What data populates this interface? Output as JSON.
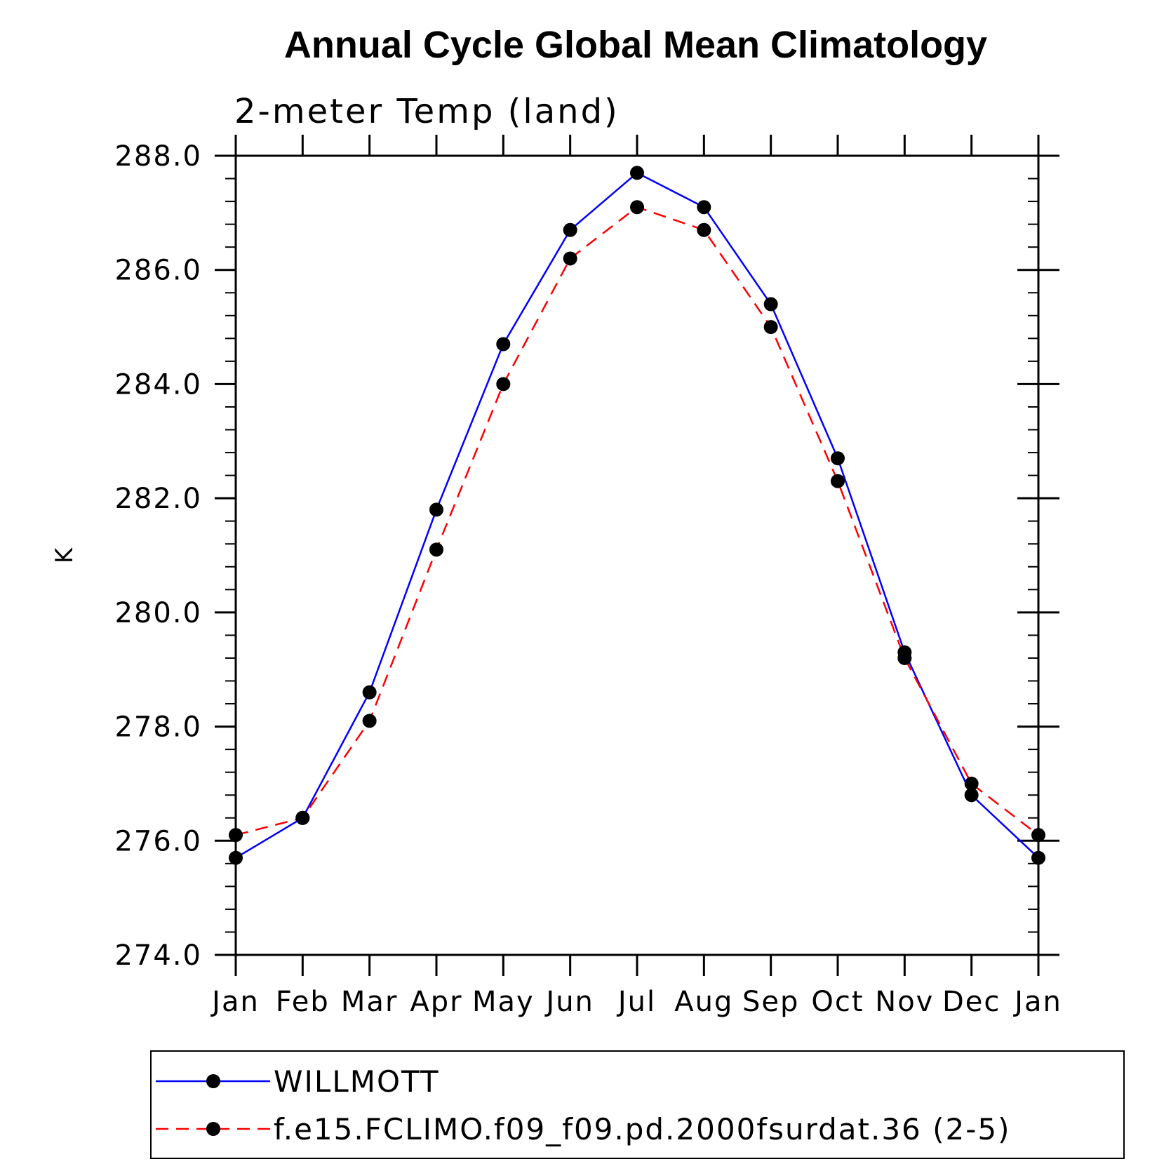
{
  "chart_data": {
    "type": "line",
    "title": "Annual Cycle Global Mean Climatology",
    "subtitle": "2-meter Temp (land)",
    "xlabel": "",
    "ylabel": "K",
    "categories": [
      "Jan",
      "Feb",
      "Mar",
      "Apr",
      "May",
      "Jun",
      "Jul",
      "Aug",
      "Sep",
      "Oct",
      "Nov",
      "Dec",
      "Jan"
    ],
    "ylim": [
      274.0,
      288.0
    ],
    "yticks": [
      "274.0",
      "276.0",
      "278.0",
      "280.0",
      "282.0",
      "284.0",
      "286.0",
      "288.0"
    ],
    "grid": false,
    "legend_position": "bottom",
    "series": [
      {
        "name": "WILLMOTT",
        "color": "#0000ff",
        "line_style": "solid",
        "marker": "filled-circle",
        "values": [
          275.7,
          276.4,
          278.6,
          281.8,
          284.7,
          286.7,
          287.7,
          287.1,
          285.4,
          282.7,
          279.3,
          276.8,
          275.7
        ]
      },
      {
        "name": "f.e15.FCLIMO.f09_f09.pd.2000fsurdat.36 (2-5)",
        "color": "#ff0000",
        "line_style": "dashed",
        "marker": "filled-circle",
        "values": [
          276.1,
          276.4,
          278.1,
          281.1,
          284.0,
          286.2,
          287.1,
          286.7,
          285.0,
          282.3,
          279.2,
          277.0,
          276.1
        ]
      }
    ]
  }
}
